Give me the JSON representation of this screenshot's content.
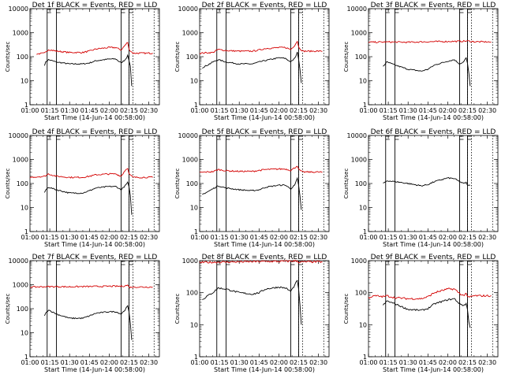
{
  "x_axis_label": "Start Time (14-Jun-14 00:58:00)",
  "y_axis_label": "Counts/sec",
  "x_ticks": [
    "01:00",
    "01:15",
    "01:30",
    "01:45",
    "02:00",
    "02:15",
    "02:30"
  ],
  "y_ticks": [
    "1",
    "10",
    "100",
    "1000",
    "10000"
  ],
  "colors": {
    "events": "#000000",
    "lld": "#d40000"
  },
  "chart_data": [
    {
      "type": "line",
      "title": "Det 1f BLACK = Events, RED = LLD",
      "xlabel": "Start Time (14-Jun-14 00:58:00)",
      "ylabel": "Counts/sec",
      "y_scale": "log",
      "ylim": [
        1,
        10000
      ],
      "xlim": [
        "01:00",
        "02:38"
      ],
      "grid": false,
      "markers_solid": [
        "01:13",
        "01:20",
        "02:09",
        "02:15"
      ],
      "markers_dotted": [
        "02:15",
        "02:18",
        "02:34"
      ],
      "series": [
        {
          "role": "events",
          "x": [
            "01:11",
            "01:12",
            "01:14",
            "01:20",
            "01:30",
            "01:40",
            "01:45",
            "01:50",
            "02:00",
            "02:05",
            "02:09",
            "02:12",
            "02:14",
            "02:15",
            "02:16",
            "02:17"
          ],
          "values": [
            45,
            60,
            75,
            60,
            50,
            50,
            55,
            68,
            80,
            80,
            55,
            75,
            110,
            70,
            40,
            6
          ]
        },
        {
          "role": "lld",
          "x": [
            "01:05",
            "01:11",
            "01:14",
            "01:20",
            "01:30",
            "01:40",
            "01:45",
            "01:50",
            "02:00",
            "02:05",
            "02:09",
            "02:12",
            "02:14",
            "02:15",
            "02:18",
            "02:25",
            "02:33"
          ],
          "values": [
            130,
            140,
            200,
            170,
            150,
            150,
            170,
            210,
            240,
            240,
            190,
            300,
            400,
            200,
            140,
            140,
            140
          ]
        }
      ]
    },
    {
      "type": "line",
      "title": "Det 2f BLACK = Events, RED = LLD",
      "xlabel": "Start Time (14-Jun-14 00:58:00)",
      "ylabel": "Counts/sec",
      "y_scale": "log",
      "ylim": [
        1,
        10000
      ],
      "xlim": [
        "01:00",
        "02:38"
      ],
      "grid": false,
      "markers_solid": [
        "01:13",
        "01:20",
        "02:09",
        "02:15"
      ],
      "markers_dotted": [
        "02:15",
        "02:18",
        "02:34"
      ],
      "series": [
        {
          "role": "events",
          "x": [
            "01:02",
            "01:06",
            "01:10",
            "01:14",
            "01:20",
            "01:30",
            "01:40",
            "01:45",
            "01:50",
            "02:00",
            "02:05",
            "02:09",
            "02:12",
            "02:14",
            "02:15",
            "02:16",
            "02:17"
          ],
          "values": [
            35,
            45,
            60,
            75,
            60,
            50,
            50,
            60,
            70,
            90,
            85,
            60,
            85,
            150,
            80,
            30,
            8
          ]
        },
        {
          "role": "lld",
          "x": [
            "01:00",
            "01:10",
            "01:14",
            "01:20",
            "01:30",
            "01:40",
            "01:45",
            "01:50",
            "02:00",
            "02:05",
            "02:09",
            "02:12",
            "02:14",
            "02:15",
            "02:18",
            "02:25",
            "02:33"
          ],
          "values": [
            140,
            150,
            200,
            180,
            170,
            170,
            190,
            220,
            240,
            240,
            200,
            300,
            450,
            250,
            170,
            170,
            170
          ]
        }
      ]
    },
    {
      "type": "line",
      "title": "Det 3f BLACK = Events, RED = LLD",
      "xlabel": "Start Time (14-Jun-14 00:58:00)",
      "ylabel": "Counts/sec",
      "y_scale": "log",
      "ylim": [
        1,
        10000
      ],
      "xlim": [
        "01:00",
        "02:38"
      ],
      "grid": false,
      "markers_solid": [
        "01:13",
        "01:20",
        "02:09",
        "02:15"
      ],
      "markers_dotted": [
        "02:15",
        "02:18",
        "02:34"
      ],
      "series": [
        {
          "role": "events",
          "x": [
            "01:11",
            "01:14",
            "01:20",
            "01:30",
            "01:40",
            "01:45",
            "01:50",
            "02:00",
            "02:05",
            "02:09",
            "02:12",
            "02:14",
            "02:15",
            "02:16",
            "02:17"
          ],
          "values": [
            40,
            60,
            45,
            30,
            25,
            30,
            45,
            65,
            75,
            50,
            60,
            90,
            50,
            20,
            6
          ]
        },
        {
          "role": "lld",
          "x": [
            "01:00",
            "01:15",
            "01:30",
            "01:45",
            "02:00",
            "02:10",
            "02:15",
            "02:20",
            "02:33"
          ],
          "values": [
            400,
            410,
            400,
            420,
            430,
            440,
            450,
            420,
            410
          ]
        }
      ]
    },
    {
      "type": "line",
      "title": "Det 4f BLACK = Events, RED = LLD",
      "xlabel": "Start Time (14-Jun-14 00:58:00)",
      "ylabel": "Counts/sec",
      "y_scale": "log",
      "ylim": [
        1,
        10000
      ],
      "xlim": [
        "01:00",
        "02:38"
      ],
      "grid": false,
      "markers_solid": [
        "01:13",
        "01:20",
        "02:09",
        "02:15"
      ],
      "markers_dotted": [
        "02:15",
        "02:18",
        "02:34"
      ],
      "series": [
        {
          "role": "events",
          "x": [
            "01:11",
            "01:12",
            "01:14",
            "01:20",
            "01:30",
            "01:40",
            "01:45",
            "01:50",
            "02:00",
            "02:05",
            "02:09",
            "02:12",
            "02:14",
            "02:15",
            "02:16",
            "02:17"
          ],
          "values": [
            40,
            55,
            70,
            55,
            40,
            40,
            50,
            65,
            75,
            75,
            55,
            80,
            110,
            70,
            30,
            5
          ]
        },
        {
          "role": "lld",
          "x": [
            "01:00",
            "01:11",
            "01:14",
            "01:20",
            "01:30",
            "01:40",
            "01:45",
            "01:50",
            "02:00",
            "02:05",
            "02:09",
            "02:12",
            "02:14",
            "02:15",
            "02:18",
            "02:25",
            "02:33"
          ],
          "values": [
            180,
            200,
            250,
            200,
            180,
            180,
            200,
            230,
            250,
            250,
            200,
            350,
            450,
            250,
            180,
            180,
            180
          ]
        }
      ]
    },
    {
      "type": "line",
      "title": "Det 5f BLACK = Events, RED = LLD",
      "xlabel": "Start Time (14-Jun-14 00:58:00)",
      "ylabel": "Counts/sec",
      "y_scale": "log",
      "ylim": [
        1,
        10000
      ],
      "xlim": [
        "01:00",
        "02:38"
      ],
      "grid": false,
      "markers_solid": [
        "01:13",
        "01:20",
        "02:09",
        "02:15"
      ],
      "markers_dotted": [
        "02:15",
        "02:18",
        "02:34"
      ],
      "series": [
        {
          "role": "events",
          "x": [
            "01:02",
            "01:06",
            "01:10",
            "01:14",
            "01:20",
            "01:30",
            "01:40",
            "01:45",
            "01:50",
            "02:00",
            "02:05",
            "02:09",
            "02:12",
            "02:14",
            "02:15",
            "02:16",
            "02:17"
          ],
          "values": [
            35,
            45,
            60,
            80,
            65,
            55,
            50,
            55,
            70,
            85,
            85,
            60,
            85,
            160,
            80,
            30,
            8
          ]
        },
        {
          "role": "lld",
          "x": [
            "01:00",
            "01:10",
            "01:14",
            "01:20",
            "01:30",
            "01:40",
            "01:45",
            "01:50",
            "02:00",
            "02:05",
            "02:09",
            "02:12",
            "02:14",
            "02:15",
            "02:18",
            "02:25",
            "02:33"
          ],
          "values": [
            290,
            310,
            380,
            340,
            320,
            320,
            350,
            380,
            400,
            400,
            350,
            450,
            550,
            380,
            300,
            300,
            300
          ]
        }
      ]
    },
    {
      "type": "line",
      "title": "Det 6f BLACK = Events, RED = LLD",
      "xlabel": "Start Time (14-Jun-14 00:58:00)",
      "ylabel": "Counts/sec",
      "y_scale": "log",
      "ylim": [
        1,
        10000
      ],
      "xlim": [
        "01:00",
        "02:38"
      ],
      "grid": false,
      "markers_solid": [
        "01:13",
        "01:20",
        "02:09",
        "02:15"
      ],
      "markers_dotted": [
        "02:15",
        "02:18",
        "02:34"
      ],
      "series": [
        {
          "role": "events",
          "x": [
            "01:11",
            "01:14",
            "01:20",
            "01:30",
            "01:40",
            "01:45",
            "01:50",
            "02:00",
            "02:05",
            "02:09",
            "02:12",
            "02:14",
            "02:15",
            "02:16",
            "02:17"
          ],
          "values": [
            100,
            130,
            120,
            100,
            80,
            90,
            120,
            170,
            160,
            120,
            100,
            110,
            80,
            90,
            85
          ]
        }
      ]
    },
    {
      "type": "line",
      "title": "Det 7f BLACK = Events, RED = LLD",
      "xlabel": "Start Time (14-Jun-14 00:58:00)",
      "ylabel": "Counts/sec",
      "y_scale": "log",
      "ylim": [
        1,
        10000
      ],
      "xlim": [
        "01:00",
        "02:38"
      ],
      "grid": false,
      "markers_solid": [
        "01:13",
        "01:20",
        "02:09",
        "02:15"
      ],
      "markers_dotted": [
        "02:15",
        "02:18",
        "02:34"
      ],
      "series": [
        {
          "role": "events",
          "x": [
            "01:11",
            "01:12",
            "01:14",
            "01:20",
            "01:30",
            "01:40",
            "01:45",
            "01:50",
            "02:00",
            "02:05",
            "02:09",
            "02:12",
            "02:14",
            "02:15",
            "02:16",
            "02:17"
          ],
          "values": [
            50,
            65,
            90,
            60,
            40,
            40,
            50,
            65,
            75,
            75,
            60,
            90,
            130,
            70,
            25,
            5
          ]
        },
        {
          "role": "lld",
          "x": [
            "01:00",
            "01:15",
            "01:30",
            "01:45",
            "02:00",
            "02:10",
            "02:14",
            "02:15",
            "02:20",
            "02:33"
          ],
          "values": [
            800,
            830,
            820,
            840,
            860,
            860,
            950,
            780,
            800,
            800
          ]
        }
      ]
    },
    {
      "type": "line",
      "title": "Det 8f BLACK = Events, RED = LLD",
      "xlabel": "Start Time (14-Jun-14 00:58:00)",
      "ylabel": "Counts/sec",
      "y_scale": "log",
      "ylim": [
        1,
        1000
      ],
      "xlim": [
        "01:00",
        "02:38"
      ],
      "grid": false,
      "markers_solid": [
        "01:13",
        "01:20",
        "02:09",
        "02:15"
      ],
      "markers_dotted": [
        "02:15",
        "02:18",
        "02:34"
      ],
      "series": [
        {
          "role": "events",
          "x": [
            "01:02",
            "01:06",
            "01:10",
            "01:14",
            "01:20",
            "01:30",
            "01:40",
            "01:45",
            "01:50",
            "02:00",
            "02:05",
            "02:09",
            "02:12",
            "02:14",
            "02:15",
            "02:16",
            "02:17"
          ],
          "values": [
            60,
            80,
            100,
            140,
            130,
            100,
            90,
            100,
            130,
            150,
            140,
            110,
            170,
            250,
            120,
            40,
            10
          ]
        },
        {
          "role": "lld",
          "x": [
            "01:00",
            "01:15",
            "01:30",
            "01:45",
            "02:00",
            "02:14",
            "02:15",
            "02:20",
            "02:33"
          ],
          "values": [
            880,
            900,
            920,
            940,
            950,
            980,
            900,
            920,
            920
          ]
        }
      ]
    },
    {
      "type": "line",
      "title": "Det 9f BLACK = Events, RED = LLD",
      "xlabel": "Start Time (14-Jun-14 00:58:00)",
      "ylabel": "Counts/sec",
      "y_scale": "log",
      "ylim": [
        1,
        1000
      ],
      "xlim": [
        "01:00",
        "02:38"
      ],
      "grid": false,
      "markers_solid": [
        "01:13",
        "01:20",
        "02:09",
        "02:15"
      ],
      "markers_dotted": [
        "02:15",
        "02:18",
        "02:34"
      ],
      "series": [
        {
          "role": "events",
          "x": [
            "01:11",
            "01:14",
            "01:20",
            "01:30",
            "01:40",
            "01:45",
            "01:50",
            "02:00",
            "02:05",
            "02:09",
            "02:12",
            "02:14",
            "02:15",
            "02:16",
            "02:17"
          ],
          "values": [
            40,
            55,
            45,
            30,
            28,
            32,
            45,
            60,
            65,
            45,
            40,
            45,
            30,
            12,
            8
          ]
        },
        {
          "role": "lld",
          "x": [
            "01:00",
            "01:05",
            "01:11",
            "01:14",
            "01:20",
            "01:30",
            "01:40",
            "01:45",
            "01:50",
            "02:00",
            "02:05",
            "02:09",
            "02:12",
            "02:14",
            "02:15",
            "02:20",
            "02:33"
          ],
          "values": [
            70,
            80,
            75,
            80,
            70,
            65,
            65,
            75,
            100,
            130,
            130,
            95,
            80,
            100,
            70,
            80,
            80
          ]
        }
      ]
    }
  ]
}
